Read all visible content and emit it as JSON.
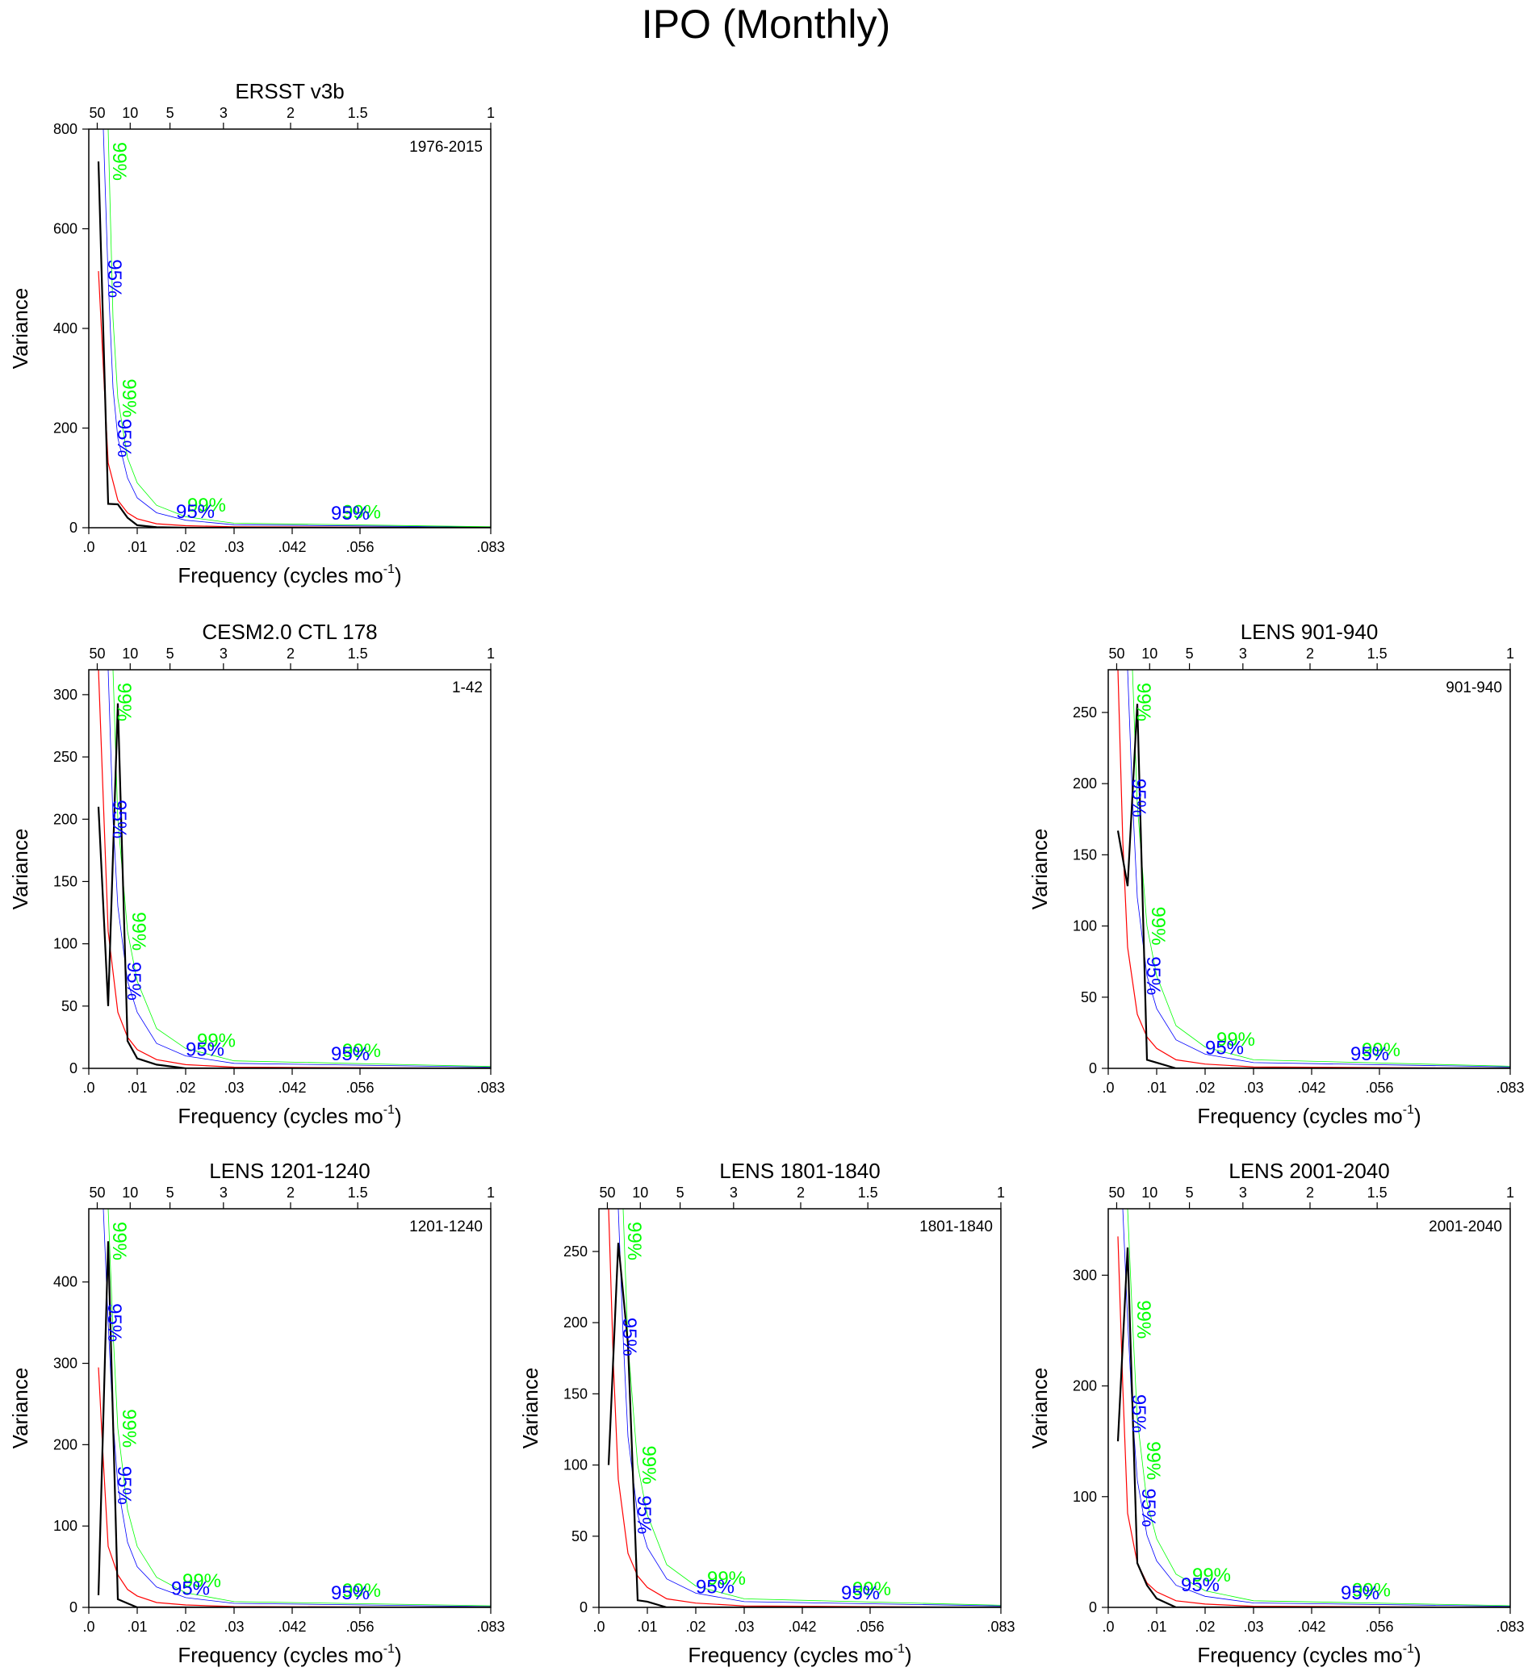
{
  "figure_title": "IPO (Monthly)",
  "colors": {
    "spectrum": "#000000",
    "red_noise": "#ff0000",
    "ci_95": "#0000ff",
    "ci_99": "#00ff00"
  },
  "label_95": "95%",
  "label_99": "99%",
  "chart_data": [
    {
      "type": "line",
      "title": "ERSST v3b",
      "period": "1976-2015",
      "xlabel": "Frequency (cycles mo",
      "xlabel_sup": "-1",
      "xlabel_close": ")",
      "ylabel": "Variance",
      "xlim": [
        0,
        0.083
      ],
      "ylim": [
        0,
        800
      ],
      "yticks": [
        0,
        200,
        400,
        600,
        800
      ],
      "ytick_labels": [
        "0",
        "200",
        "400",
        "600",
        "800"
      ],
      "xticks": [
        0,
        0.01,
        0.02,
        0.03,
        0.042,
        0.056,
        0.083
      ],
      "xtick_labels": [
        ".0",
        ".01",
        ".02",
        ".03",
        ".042",
        ".056",
        ".083"
      ],
      "top_period_labels": [
        "50",
        "10",
        "5",
        "3",
        "2",
        "1.5",
        "1"
      ],
      "series": [
        {
          "name": "spectrum",
          "x": [
            0.002,
            0.004,
            0.006,
            0.008,
            0.01,
            0.014,
            0.02,
            0.083
          ],
          "y": [
            735,
            48,
            47,
            20,
            5,
            1,
            0,
            0
          ]
        },
        {
          "name": "red_noise",
          "x": [
            0.002,
            0.004,
            0.006,
            0.008,
            0.01,
            0.014,
            0.02,
            0.03,
            0.083
          ],
          "y": [
            515,
            130,
            55,
            30,
            18,
            8,
            4,
            2,
            0
          ]
        },
        {
          "name": "95%",
          "x": [
            0.003,
            0.004,
            0.005,
            0.006,
            0.008,
            0.01,
            0.014,
            0.02,
            0.03,
            0.083
          ],
          "y": [
            800,
            500,
            280,
            180,
            100,
            60,
            30,
            15,
            6,
            1
          ]
        },
        {
          "name": "99%",
          "x": [
            0.003,
            0.004,
            0.005,
            0.006,
            0.008,
            0.01,
            0.014,
            0.02,
            0.03,
            0.083
          ],
          "y": [
            800,
            800,
            420,
            260,
            140,
            90,
            45,
            22,
            9,
            2
          ]
        }
      ],
      "ci_labels_at": [
        0.004,
        0.006,
        0.022,
        0.054
      ]
    },
    {
      "type": "line",
      "title": "CESM2.0 CTL 178",
      "period": "1-42",
      "xlabel": "Frequency (cycles mo",
      "xlabel_sup": "-1",
      "xlabel_close": ")",
      "ylabel": "Variance",
      "xlim": [
        0,
        0.083
      ],
      "ylim": [
        0,
        320
      ],
      "yticks": [
        0,
        50,
        100,
        150,
        200,
        250,
        300
      ],
      "ytick_labels": [
        "0",
        "50",
        "100",
        "150",
        "200",
        "250",
        "300"
      ],
      "xticks": [
        0,
        0.01,
        0.02,
        0.03,
        0.042,
        0.056,
        0.083
      ],
      "xtick_labels": [
        ".0",
        ".01",
        ".02",
        ".03",
        ".042",
        ".056",
        ".083"
      ],
      "top_period_labels": [
        "50",
        "10",
        "5",
        "3",
        "2",
        "1.5",
        "1"
      ],
      "series": [
        {
          "name": "spectrum",
          "x": [
            0.002,
            0.004,
            0.006,
            0.008,
            0.01,
            0.014,
            0.02,
            0.083
          ],
          "y": [
            210,
            50,
            293,
            22,
            8,
            3,
            0,
            0
          ]
        },
        {
          "name": "red_noise",
          "x": [
            0.002,
            0.004,
            0.006,
            0.008,
            0.01,
            0.014,
            0.02,
            0.03,
            0.083
          ],
          "y": [
            320,
            110,
            45,
            25,
            15,
            7,
            3,
            1,
            0
          ]
        },
        {
          "name": "95%",
          "x": [
            0.003,
            0.004,
            0.005,
            0.006,
            0.008,
            0.01,
            0.014,
            0.02,
            0.03,
            0.083
          ],
          "y": [
            320,
            320,
            200,
            130,
            70,
            45,
            20,
            10,
            4,
            1
          ]
        },
        {
          "name": "99%",
          "x": [
            0.003,
            0.004,
            0.005,
            0.006,
            0.008,
            0.01,
            0.014,
            0.02,
            0.03,
            0.083
          ],
          "y": [
            320,
            320,
            320,
            200,
            110,
            70,
            32,
            16,
            6,
            1.5
          ]
        }
      ],
      "ci_labels_at": [
        0.005,
        0.008,
        0.024,
        0.054
      ]
    },
    {
      "type": "line",
      "title": "LENS 901-940",
      "period": "901-940",
      "xlabel": "Frequency (cycles mo",
      "xlabel_sup": "-1",
      "xlabel_close": ")",
      "ylabel": "Variance",
      "xlim": [
        0,
        0.083
      ],
      "ylim": [
        0,
        280
      ],
      "yticks": [
        0,
        50,
        100,
        150,
        200,
        250
      ],
      "ytick_labels": [
        "0",
        "50",
        "100",
        "150",
        "200",
        "250"
      ],
      "xticks": [
        0,
        0.01,
        0.02,
        0.03,
        0.042,
        0.056,
        0.083
      ],
      "xtick_labels": [
        ".0",
        ".01",
        ".02",
        ".03",
        ".042",
        ".056",
        ".083"
      ],
      "top_period_labels": [
        "50",
        "10",
        "5",
        "3",
        "2",
        "1.5",
        "1"
      ],
      "series": [
        {
          "name": "spectrum",
          "x": [
            0.002,
            0.004,
            0.006,
            0.008,
            0.01,
            0.014,
            0.02,
            0.083
          ],
          "y": [
            167,
            128,
            256,
            6,
            4,
            0,
            0,
            0
          ]
        },
        {
          "name": "red_noise",
          "x": [
            0.002,
            0.003,
            0.004,
            0.006,
            0.008,
            0.01,
            0.014,
            0.02,
            0.03,
            0.083
          ],
          "y": [
            280,
            160,
            85,
            38,
            22,
            14,
            6,
            3,
            1,
            0
          ]
        },
        {
          "name": "95%",
          "x": [
            0.003,
            0.004,
            0.005,
            0.006,
            0.008,
            0.01,
            0.014,
            0.02,
            0.03,
            0.083
          ],
          "y": [
            280,
            280,
            190,
            120,
            65,
            42,
            20,
            10,
            4,
            1
          ]
        },
        {
          "name": "99%",
          "x": [
            0.003,
            0.004,
            0.005,
            0.006,
            0.008,
            0.01,
            0.014,
            0.02,
            0.03,
            0.083
          ],
          "y": [
            280,
            280,
            280,
            185,
            100,
            65,
            30,
            15,
            6,
            1.5
          ]
        }
      ],
      "ci_labels_at": [
        0.005,
        0.008,
        0.024,
        0.054
      ]
    },
    {
      "type": "line",
      "title": "LENS 1201-1240",
      "period": "1201-1240",
      "xlabel": "Frequency (cycles mo",
      "xlabel_sup": "-1",
      "xlabel_close": ")",
      "ylabel": "Variance",
      "xlim": [
        0,
        0.083
      ],
      "ylim": [
        0,
        490
      ],
      "yticks": [
        0,
        100,
        200,
        300,
        400
      ],
      "ytick_labels": [
        "0",
        "100",
        "200",
        "300",
        "400"
      ],
      "xticks": [
        0,
        0.01,
        0.02,
        0.03,
        0.042,
        0.056,
        0.083
      ],
      "xtick_labels": [
        ".0",
        ".01",
        ".02",
        ".03",
        ".042",
        ".056",
        ".083"
      ],
      "top_period_labels": [
        "50",
        "10",
        "5",
        "3",
        "2",
        "1.5",
        "1"
      ],
      "series": [
        {
          "name": "spectrum",
          "x": [
            0.002,
            0.004,
            0.006,
            0.008,
            0.01,
            0.014,
            0.02,
            0.083
          ],
          "y": [
            15,
            450,
            10,
            5,
            0,
            0,
            0,
            0
          ]
        },
        {
          "name": "red_noise",
          "x": [
            0.002,
            0.003,
            0.004,
            0.006,
            0.008,
            0.01,
            0.014,
            0.02,
            0.03,
            0.083
          ],
          "y": [
            295,
            180,
            75,
            40,
            22,
            14,
            6,
            3,
            1,
            0
          ]
        },
        {
          "name": "95%",
          "x": [
            0.003,
            0.004,
            0.005,
            0.006,
            0.008,
            0.01,
            0.014,
            0.02,
            0.03,
            0.083
          ],
          "y": [
            490,
            350,
            230,
            150,
            80,
            50,
            25,
            12,
            5,
            1
          ]
        },
        {
          "name": "99%",
          "x": [
            0.003,
            0.004,
            0.005,
            0.006,
            0.008,
            0.01,
            0.014,
            0.02,
            0.03,
            0.083
          ],
          "y": [
            490,
            490,
            340,
            220,
            120,
            75,
            37,
            18,
            7,
            2
          ]
        }
      ],
      "ci_labels_at": [
        0.004,
        0.006,
        0.021,
        0.054
      ]
    },
    {
      "type": "line",
      "title": "LENS 1801-1840",
      "period": "1801-1840",
      "xlabel": "Frequency (cycles mo",
      "xlabel_sup": "-1",
      "xlabel_close": ")",
      "ylabel": "Variance",
      "xlim": [
        0,
        0.083
      ],
      "ylim": [
        0,
        280
      ],
      "yticks": [
        0,
        50,
        100,
        150,
        200,
        250
      ],
      "ytick_labels": [
        "0",
        "50",
        "100",
        "150",
        "200",
        "250"
      ],
      "xticks": [
        0,
        0.01,
        0.02,
        0.03,
        0.042,
        0.056,
        0.083
      ],
      "xtick_labels": [
        ".0",
        ".01",
        ".02",
        ".03",
        ".042",
        ".056",
        ".083"
      ],
      "top_period_labels": [
        "50",
        "10",
        "5",
        "3",
        "2",
        "1.5",
        "1"
      ],
      "series": [
        {
          "name": "spectrum",
          "x": [
            0.002,
            0.004,
            0.006,
            0.008,
            0.01,
            0.014,
            0.02,
            0.083
          ],
          "y": [
            100,
            256,
            185,
            5,
            4,
            0,
            0,
            0
          ]
        },
        {
          "name": "red_noise",
          "x": [
            0.002,
            0.003,
            0.004,
            0.006,
            0.008,
            0.01,
            0.014,
            0.02,
            0.03,
            0.083
          ],
          "y": [
            280,
            170,
            90,
            38,
            22,
            14,
            6,
            3,
            1,
            0
          ]
        },
        {
          "name": "95%",
          "x": [
            0.003,
            0.004,
            0.005,
            0.006,
            0.008,
            0.01,
            0.014,
            0.02,
            0.03,
            0.083
          ],
          "y": [
            280,
            280,
            190,
            120,
            65,
            42,
            20,
            10,
            4,
            1
          ]
        },
        {
          "name": "99%",
          "x": [
            0.003,
            0.004,
            0.005,
            0.006,
            0.008,
            0.01,
            0.014,
            0.02,
            0.03,
            0.083
          ],
          "y": [
            280,
            280,
            280,
            185,
            100,
            65,
            30,
            15,
            6,
            1.5
          ]
        }
      ],
      "ci_labels_at": [
        0.005,
        0.008,
        0.024,
        0.054
      ]
    },
    {
      "type": "line",
      "title": "LENS 2001-2040",
      "period": "2001-2040",
      "xlabel": "Frequency (cycles mo",
      "xlabel_sup": "-1",
      "xlabel_close": ")",
      "ylabel": "Variance",
      "xlim": [
        0,
        0.083
      ],
      "ylim": [
        0,
        360
      ],
      "yticks": [
        0,
        100,
        200,
        300
      ],
      "ytick_labels": [
        "0",
        "100",
        "200",
        "300"
      ],
      "xticks": [
        0,
        0.01,
        0.02,
        0.03,
        0.042,
        0.056,
        0.083
      ],
      "xtick_labels": [
        ".0",
        ".01",
        ".02",
        ".03",
        ".042",
        ".056",
        ".083"
      ],
      "top_period_labels": [
        "50",
        "10",
        "5",
        "3",
        "2",
        "1.5",
        "1"
      ],
      "series": [
        {
          "name": "spectrum",
          "x": [
            0.002,
            0.004,
            0.006,
            0.008,
            0.01,
            0.014,
            0.02,
            0.083
          ],
          "y": [
            150,
            325,
            40,
            20,
            8,
            0,
            0,
            0
          ]
        },
        {
          "name": "red_noise",
          "x": [
            0.002,
            0.003,
            0.004,
            0.006,
            0.008,
            0.01,
            0.014,
            0.02,
            0.03,
            0.083
          ],
          "y": [
            335,
            200,
            85,
            40,
            22,
            14,
            6,
            3,
            1,
            0
          ]
        },
        {
          "name": "95%",
          "x": [
            0.003,
            0.004,
            0.005,
            0.006,
            0.008,
            0.01,
            0.014,
            0.02,
            0.03,
            0.083
          ],
          "y": [
            360,
            260,
            175,
            115,
            65,
            42,
            20,
            10,
            4,
            1
          ]
        },
        {
          "name": "99%",
          "x": [
            0.003,
            0.004,
            0.005,
            0.006,
            0.008,
            0.01,
            0.014,
            0.02,
            0.03,
            0.083
          ],
          "y": [
            360,
            360,
            260,
            170,
            95,
            62,
            30,
            15,
            6,
            1.5
          ]
        }
      ],
      "ci_labels_at": [
        0.005,
        0.007,
        0.019,
        0.052
      ]
    }
  ]
}
